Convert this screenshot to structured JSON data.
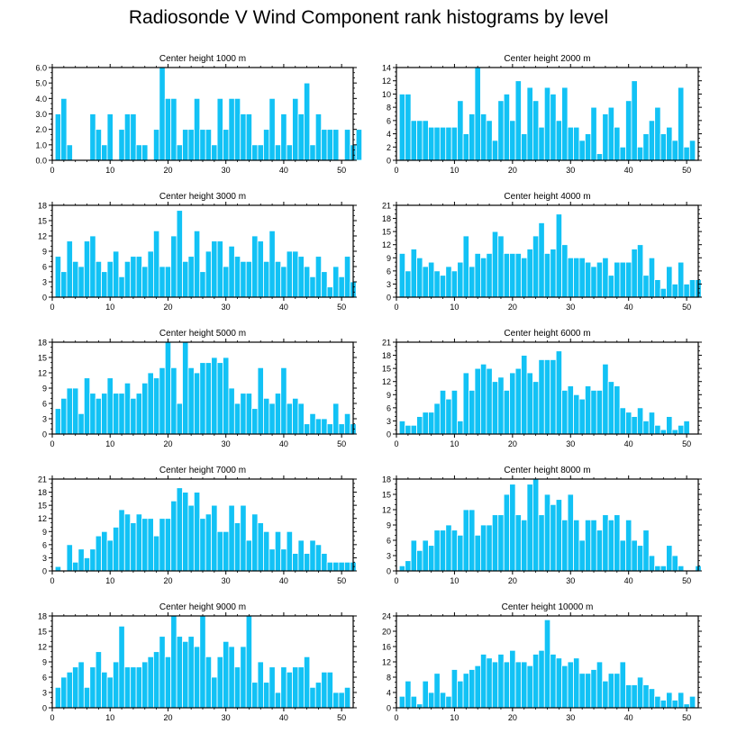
{
  "page_title": "Radiosonde V Wind Component rank histograms by level",
  "colors": {
    "bar": "#12c2f5",
    "bar_edge": "#ffffff",
    "axis": "#000000",
    "background": "#ffffff"
  },
  "chart_data": [
    {
      "type": "bar",
      "title": "Center height 1000 m",
      "xlabel": "",
      "ylabel": "",
      "xlim": [
        0,
        52
      ],
      "ylim": [
        0,
        6
      ],
      "y_ticks": [
        "0.0",
        "1.0",
        "2.0",
        "3.0",
        "4.0",
        "5.0",
        "6.0"
      ],
      "x_ticks": [
        "0",
        "10",
        "20",
        "30",
        "40",
        "50"
      ],
      "values": [
        0,
        3,
        4,
        1,
        0,
        0,
        0,
        3,
        2,
        1,
        3,
        0,
        2,
        3,
        3,
        1,
        1,
        0,
        2,
        6,
        4,
        4,
        1,
        2,
        2,
        4,
        2,
        2,
        1,
        4,
        2,
        4,
        4,
        3,
        3,
        1,
        1,
        2,
        4,
        1,
        3,
        1,
        4,
        3,
        5,
        1,
        3,
        2,
        2,
        2,
        0,
        2,
        1,
        2
      ]
    },
    {
      "type": "bar",
      "title": "Center height 2000 m",
      "xlabel": "",
      "ylabel": "",
      "xlim": [
        0,
        52
      ],
      "ylim": [
        0,
        14
      ],
      "y_ticks": [
        "0",
        "2",
        "4",
        "6",
        "8",
        "10",
        "12",
        "14"
      ],
      "x_ticks": [
        "0",
        "10",
        "20",
        "30",
        "40",
        "50"
      ],
      "values": [
        0,
        10,
        10,
        6,
        6,
        6,
        5,
        5,
        5,
        5,
        5,
        9,
        4,
        7,
        14,
        7,
        6,
        3,
        9,
        10,
        6,
        12,
        4,
        11,
        9,
        5,
        11,
        10,
        6,
        11,
        5,
        5,
        3,
        4,
        8,
        1,
        7,
        8,
        5,
        2,
        9,
        12,
        2,
        4,
        6,
        8,
        4,
        5,
        3,
        11,
        2,
        3
      ]
    },
    {
      "type": "bar",
      "title": "Center height 3000 m",
      "xlabel": "",
      "ylabel": "",
      "xlim": [
        0,
        52
      ],
      "ylim": [
        0,
        18
      ],
      "y_ticks": [
        "0",
        "3",
        "6",
        "9",
        "12",
        "15",
        "18"
      ],
      "x_ticks": [
        "0",
        "10",
        "20",
        "30",
        "40",
        "50"
      ],
      "values": [
        0,
        8,
        5,
        11,
        7,
        6,
        11,
        12,
        7,
        5,
        7,
        9,
        4,
        7,
        8,
        8,
        6,
        9,
        13,
        6,
        6,
        12,
        17,
        7,
        8,
        13,
        5,
        9,
        11,
        11,
        6,
        10,
        8,
        7,
        7,
        12,
        11,
        7,
        13,
        7,
        6,
        9,
        9,
        8,
        6,
        4,
        8,
        5,
        2,
        6,
        4,
        8,
        3
      ]
    },
    {
      "type": "bar",
      "title": "Center height 4000 m",
      "xlabel": "",
      "ylabel": "",
      "xlim": [
        0,
        52
      ],
      "ylim": [
        0,
        21
      ],
      "y_ticks": [
        "0",
        "3",
        "6",
        "9",
        "12",
        "15",
        "18",
        "21"
      ],
      "x_ticks": [
        "0",
        "10",
        "20",
        "30",
        "40",
        "50"
      ],
      "values": [
        0,
        10,
        6,
        11,
        9,
        7,
        8,
        6,
        5,
        7,
        6,
        8,
        14,
        7,
        10,
        9,
        10,
        15,
        14,
        10,
        10,
        10,
        9,
        11,
        14,
        17,
        10,
        11,
        19,
        12,
        9,
        9,
        9,
        8,
        7,
        8,
        9,
        5,
        8,
        8,
        8,
        11,
        12,
        5,
        9,
        4,
        2,
        7,
        3,
        8,
        3,
        4,
        4
      ]
    },
    {
      "type": "bar",
      "title": "Center height 5000 m",
      "xlabel": "",
      "ylabel": "",
      "xlim": [
        0,
        52
      ],
      "ylim": [
        0,
        18
      ],
      "y_ticks": [
        "0",
        "3",
        "6",
        "9",
        "12",
        "15",
        "18"
      ],
      "x_ticks": [
        "0",
        "10",
        "20",
        "30",
        "40",
        "50"
      ],
      "values": [
        0,
        5,
        7,
        9,
        9,
        4,
        11,
        8,
        7,
        8,
        11,
        8,
        8,
        10,
        7,
        8,
        10,
        12,
        11,
        13,
        18,
        13,
        6,
        18,
        13,
        12,
        14,
        14,
        15,
        14,
        15,
        9,
        6,
        8,
        8,
        5,
        13,
        7,
        6,
        8,
        13,
        6,
        7,
        6,
        2,
        4,
        3,
        3,
        2,
        6,
        2,
        4,
        2
      ]
    },
    {
      "type": "bar",
      "title": "Center height 6000 m",
      "xlabel": "",
      "ylabel": "",
      "xlim": [
        0,
        52
      ],
      "ylim": [
        0,
        21
      ],
      "y_ticks": [
        "0",
        "3",
        "6",
        "9",
        "12",
        "15",
        "18",
        "21"
      ],
      "x_ticks": [
        "0",
        "10",
        "20",
        "30",
        "40",
        "50"
      ],
      "values": [
        0,
        3,
        2,
        2,
        4,
        5,
        5,
        7,
        10,
        8,
        10,
        3,
        14,
        10,
        15,
        16,
        15,
        12,
        13,
        10,
        14,
        15,
        18,
        14,
        12,
        17,
        17,
        17,
        19,
        10,
        11,
        9,
        8,
        11,
        10,
        10,
        16,
        12,
        11,
        6,
        5,
        4,
        6,
        3,
        5,
        2,
        1,
        4,
        1,
        2,
        3,
        0,
        0
      ]
    },
    {
      "type": "bar",
      "title": "Center height 7000 m",
      "xlabel": "",
      "ylabel": "",
      "xlim": [
        0,
        52
      ],
      "ylim": [
        0,
        21
      ],
      "y_ticks": [
        "0",
        "3",
        "6",
        "9",
        "12",
        "15",
        "18",
        "21"
      ],
      "x_ticks": [
        "0",
        "10",
        "20",
        "30",
        "40",
        "50"
      ],
      "values": [
        0,
        1,
        0,
        6,
        2,
        5,
        3,
        5,
        8,
        9,
        7,
        10,
        14,
        13,
        11,
        13,
        12,
        12,
        8,
        12,
        12,
        16,
        19,
        18,
        15,
        18,
        12,
        13,
        15,
        9,
        9,
        15,
        11,
        15,
        7,
        13,
        11,
        9,
        5,
        9,
        5,
        9,
        4,
        7,
        4,
        7,
        6,
        4,
        2,
        2,
        2,
        2,
        2
      ]
    },
    {
      "type": "bar",
      "title": "Center height 8000 m",
      "xlabel": "",
      "ylabel": "",
      "xlim": [
        0,
        52
      ],
      "ylim": [
        0,
        18
      ],
      "y_ticks": [
        "0",
        "3",
        "6",
        "9",
        "12",
        "15",
        "18"
      ],
      "x_ticks": [
        "0",
        "10",
        "20",
        "30",
        "40",
        "50"
      ],
      "values": [
        0,
        1,
        2,
        6,
        4,
        6,
        5,
        8,
        8,
        9,
        8,
        7,
        12,
        12,
        7,
        9,
        9,
        11,
        11,
        15,
        17,
        11,
        10,
        17,
        18,
        11,
        15,
        13,
        14,
        10,
        15,
        10,
        6,
        10,
        10,
        8,
        11,
        10,
        11,
        6,
        10,
        6,
        5,
        8,
        3,
        1,
        1,
        5,
        3,
        1,
        0,
        0,
        1
      ]
    },
    {
      "type": "bar",
      "title": "Center height 9000 m",
      "xlabel": "",
      "ylabel": "",
      "xlim": [
        0,
        52
      ],
      "ylim": [
        0,
        18
      ],
      "y_ticks": [
        "0",
        "3",
        "6",
        "9",
        "12",
        "15",
        "18"
      ],
      "x_ticks": [
        "0",
        "10",
        "20",
        "30",
        "40",
        "50"
      ],
      "values": [
        0,
        4,
        6,
        7,
        8,
        9,
        4,
        8,
        11,
        7,
        6,
        9,
        16,
        8,
        8,
        8,
        9,
        10,
        11,
        14,
        10,
        18,
        14,
        13,
        14,
        12,
        18,
        10,
        6,
        10,
        13,
        12,
        8,
        12,
        18,
        5,
        9,
        5,
        8,
        3,
        8,
        7,
        8,
        8,
        10,
        4,
        5,
        7,
        7,
        3,
        3,
        4,
        0
      ]
    },
    {
      "type": "bar",
      "title": "Center height 10000 m",
      "xlabel": "",
      "ylabel": "",
      "xlim": [
        0,
        52
      ],
      "ylim": [
        0,
        24
      ],
      "y_ticks": [
        "0",
        "4",
        "8",
        "12",
        "16",
        "20",
        "24"
      ],
      "x_ticks": [
        "0",
        "10",
        "20",
        "30",
        "40",
        "50"
      ],
      "values": [
        0,
        3,
        7,
        3,
        1,
        7,
        4,
        9,
        4,
        3,
        10,
        7,
        9,
        10,
        11,
        14,
        13,
        12,
        14,
        12,
        15,
        12,
        12,
        11,
        14,
        15,
        23,
        14,
        13,
        11,
        12,
        13,
        9,
        9,
        10,
        12,
        7,
        9,
        9,
        12,
        6,
        6,
        8,
        6,
        5,
        3,
        2,
        4,
        2,
        4,
        1,
        3,
        0
      ]
    }
  ]
}
